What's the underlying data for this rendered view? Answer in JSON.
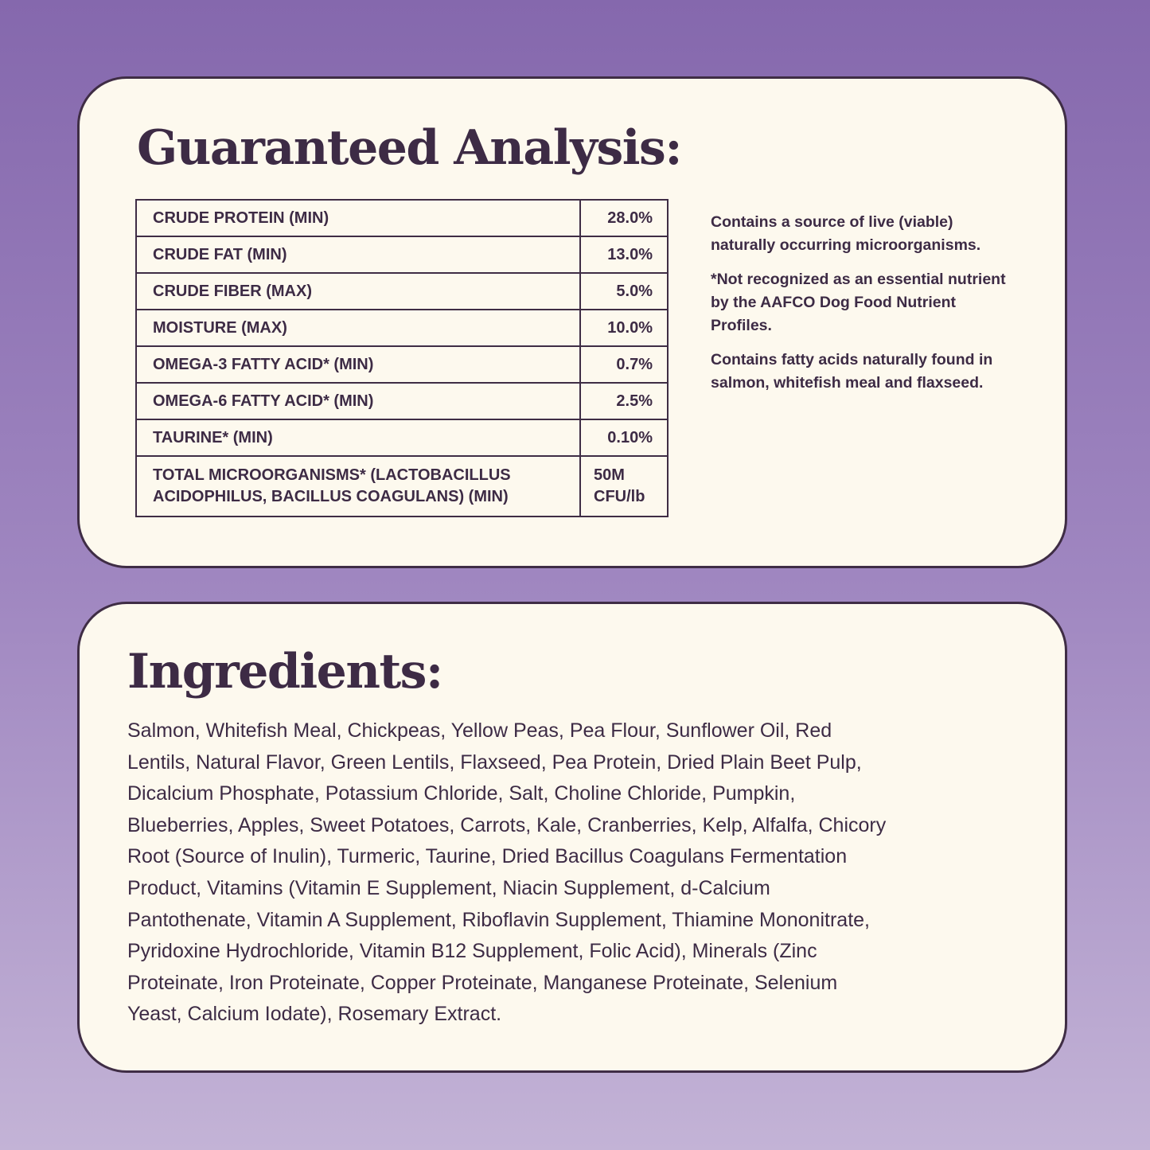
{
  "analysis": {
    "title": "Guaranteed Analysis:",
    "rows": [
      {
        "label": "CRUDE PROTEIN (MIN)",
        "value": "28.0%"
      },
      {
        "label": "CRUDE FAT (MIN)",
        "value": "13.0%"
      },
      {
        "label": "CRUDE FIBER (MAX)",
        "value": "5.0%"
      },
      {
        "label": "MOISTURE (MAX)",
        "value": "10.0%"
      },
      {
        "label": "OMEGA-3 FATTY ACID* (MIN)",
        "value": "0.7%"
      },
      {
        "label": "OMEGA-6 FATTY ACID* (MIN)",
        "value": "2.5%"
      },
      {
        "label": "TAURINE* (MIN)",
        "value": "0.10%"
      },
      {
        "label_line1": "TOTAL MICROORGANISMS* (LACTOBACILLUS",
        "label_line2": "ACIDOPHILUS, BACILLUS COAGULANS) (MIN)",
        "value_line1": "50M",
        "value_line2": "CFU/lb"
      }
    ],
    "notes": [
      "Contains a source of live (viable) naturally occurring microorganisms.",
      "*Not recognized as an essential nutrient by the AAFCO Dog Food Nutrient Profiles.",
      "Contains fatty acids naturally found in salmon, whitefish meal and flaxseed."
    ]
  },
  "ingredients": {
    "title": "Ingredients:",
    "lines": [
      "Salmon, Whitefish Meal, Chickpeas, Yellow Peas, Pea Flour, Sunflower Oil, Red",
      "Lentils, Natural Flavor, Green Lentils, Flaxseed, Pea Protein, Dried Plain Beet Pulp,",
      "Dicalcium Phosphate, Potassium Chloride, Salt, Choline Chloride, Pumpkin,",
      "Blueberries, Apples, Sweet Potatoes, Carrots, Kale, Cranberries, Kelp, Alfalfa, Chicory",
      "Root (Source of Inulin), Turmeric, Taurine, Dried Bacillus Coagulans Fermentation",
      "Product, Vitamins (Vitamin E Supplement, Niacin Supplement, d-Calcium",
      "Pantothenate, Vitamin A Supplement, Riboflavin Supplement, Thiamine Mononitrate,",
      "Pyridoxine Hydrochloride, Vitamin B12 Supplement, Folic Acid), Minerals (Zinc",
      "Proteinate, Iron Proteinate, Copper Proteinate, Manganese Proteinate, Selenium",
      "Yeast, Calcium Iodate), Rosemary Extract."
    ]
  },
  "colors": {
    "background_top": "#8568ad",
    "background_bottom": "#c3b3d6",
    "card": "#fdf9ee",
    "text": "#3d2b45"
  }
}
